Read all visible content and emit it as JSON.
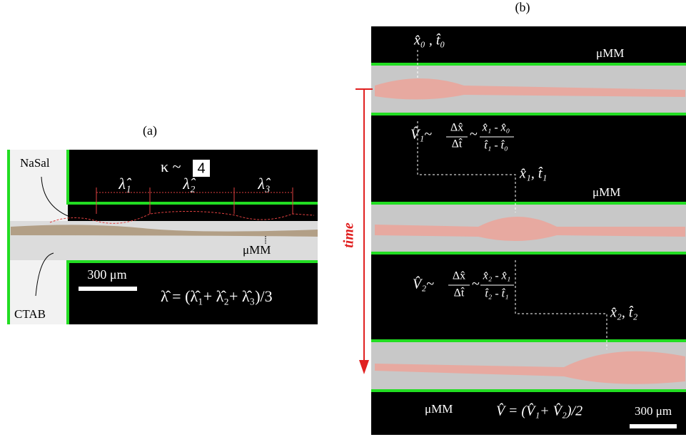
{
  "panel_a": {
    "label": "(a)",
    "nasal": "NaSal",
    "ctab": "CTAB",
    "kappa": "κ ~",
    "kappa_value": "4",
    "lambda_1": "λ̂₁",
    "lambda_2": "λ̂₂",
    "lambda_3": "λ̂₃",
    "mumm": "μMM",
    "scale_bar": "300 μm",
    "lambda_mean": "λ̂ = (λ̂₁+ λ̂₂+ λ̂₃)/3"
  },
  "panel_b": {
    "label": "(b)",
    "x0_t0": "x̂₀ , t̂₀",
    "mumm_1": "μMM",
    "v1": "V̂₁~",
    "dx_1": "Δx̂",
    "dt_1": "Δt̂",
    "tilde_1": "~",
    "num_1": "x̂₁ - x̂₀",
    "den_1": "t̂₁ - t̂₀",
    "x1_t1": "x̂₁, t̂₁",
    "mumm_2": "μMM",
    "v2": "V̂₂~",
    "dx_2": "Δx̂",
    "dt_2": "Δt̂",
    "tilde_2": "~",
    "num_2": "x̂₂ - x̂₁",
    "den_2": "t̂₂ - t̂₁",
    "x2_t2": "x̂₂, t̂₂",
    "time": "time",
    "mumm_3": "μMM",
    "v_mean": "V̂ = (V̂₁+ V̂₂)/2",
    "scale_bar": "300 μm"
  }
}
